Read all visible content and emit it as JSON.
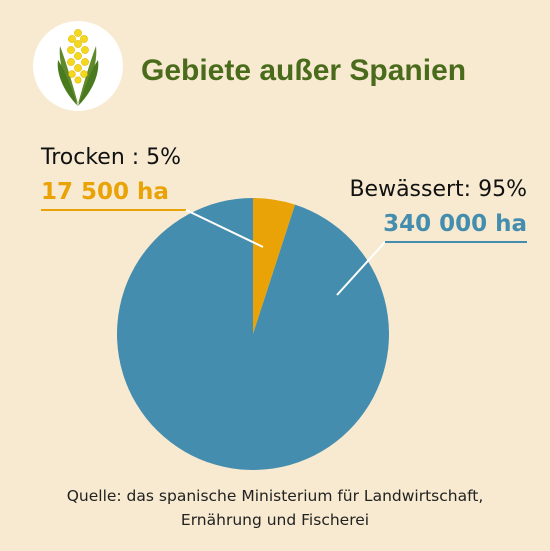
{
  "chart_data": {
    "type": "pie",
    "title": "Gebiete außer Spanien",
    "slices": [
      {
        "label": "Trocken : 5%",
        "value": 5,
        "amount": "17 500 ha",
        "color": "#e9a306"
      },
      {
        "label": "Bewässert: 95%",
        "value": 95,
        "amount": "340 000 ha",
        "color": "#448daf"
      }
    ],
    "source_lines": [
      "Quelle: das spanische Ministerium für Landwirtschaft,",
      "Ernährung und Fischerei"
    ]
  },
  "colors": {
    "background": "#f7ead0",
    "title": "#4a6b1c",
    "leader_line": "#ffffff"
  },
  "icon": "corn-icon"
}
